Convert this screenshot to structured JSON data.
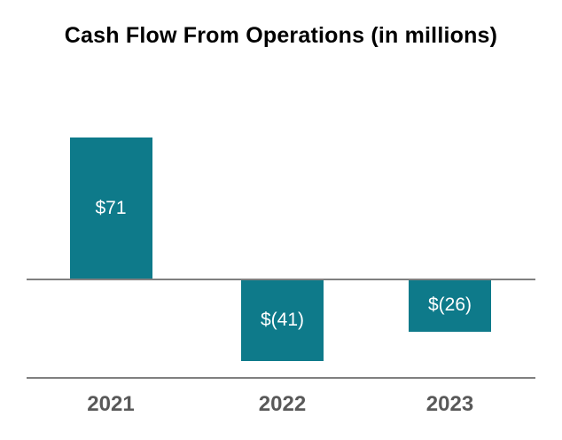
{
  "chart_data": {
    "type": "bar",
    "title": "Cash Flow From Operations (in millions)",
    "categories": [
      "2021",
      "2022",
      "2023"
    ],
    "values": [
      71,
      -41,
      -26
    ],
    "value_labels": [
      "$71",
      "$(41)",
      "$(26)"
    ],
    "xlabel": "",
    "ylabel": "",
    "ylim": [
      -50,
      80
    ],
    "grid": false,
    "legend": false,
    "axis_lines": [
      "zero-baseline",
      "bottom-line"
    ],
    "colors": {
      "bar": "#0e7a8a",
      "axis_line": "#808080",
      "value_label": "#ffffff",
      "tick_label": "#595959",
      "title": "#000000",
      "background": "#ffffff"
    }
  }
}
